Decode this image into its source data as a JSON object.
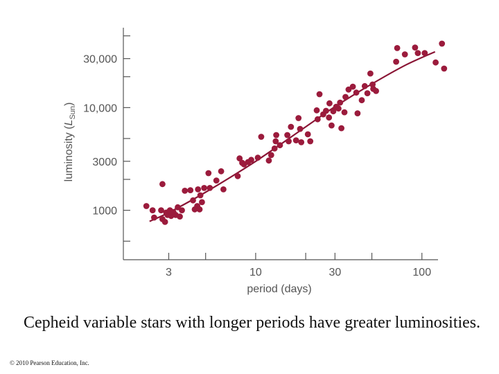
{
  "chart_data": {
    "type": "scatter",
    "xscale": "log",
    "yscale": "log",
    "xlabel": "period (days)",
    "ylabel_main": "luminosity (",
    "ylabel_italic": "L",
    "ylabel_sub": "Sun",
    "ylabel_close": ")",
    "xlim": [
      1.6,
      125
    ],
    "ylim": [
      330,
      60000
    ],
    "x_ticks": [
      {
        "value": 3,
        "label": "3"
      },
      {
        "value": 10,
        "label": "10"
      },
      {
        "value": 30,
        "label": "30"
      },
      {
        "value": 100,
        "label": "100"
      }
    ],
    "x_minor_ticks": [
      5,
      20,
      50
    ],
    "y_ticks": [
      {
        "value": 1000,
        "label": "1000"
      },
      {
        "value": 3000,
        "label": "3000"
      },
      {
        "value": 10000,
        "label": "10,000"
      },
      {
        "value": 30000,
        "label": "30,000"
      }
    ],
    "y_minor_ticks": [
      500,
      2000,
      5000,
      20000,
      50000
    ],
    "trend": {
      "x": [
        2.3,
        3,
        5,
        10,
        20,
        30,
        50,
        80,
        120
      ],
      "y": [
        780,
        950,
        1500,
        3000,
        6500,
        10200,
        17000,
        26000,
        35000
      ]
    },
    "points": [
      {
        "x": 2.2,
        "y": 1100
      },
      {
        "x": 2.4,
        "y": 1000
      },
      {
        "x": 2.45,
        "y": 850
      },
      {
        "x": 2.7,
        "y": 1000
      },
      {
        "x": 2.75,
        "y": 1800
      },
      {
        "x": 2.75,
        "y": 820
      },
      {
        "x": 2.85,
        "y": 770
      },
      {
        "x": 2.9,
        "y": 950
      },
      {
        "x": 2.95,
        "y": 900
      },
      {
        "x": 3.05,
        "y": 1000
      },
      {
        "x": 3.1,
        "y": 880
      },
      {
        "x": 3.2,
        "y": 960
      },
      {
        "x": 3.3,
        "y": 900
      },
      {
        "x": 3.4,
        "y": 1070
      },
      {
        "x": 3.5,
        "y": 870
      },
      {
        "x": 3.6,
        "y": 1000
      },
      {
        "x": 3.75,
        "y": 1550
      },
      {
        "x": 4.05,
        "y": 1570
      },
      {
        "x": 4.2,
        "y": 1250
      },
      {
        "x": 4.3,
        "y": 1020
      },
      {
        "x": 4.45,
        "y": 1100
      },
      {
        "x": 4.5,
        "y": 1600
      },
      {
        "x": 4.6,
        "y": 1020
      },
      {
        "x": 4.65,
        "y": 1400
      },
      {
        "x": 4.75,
        "y": 1200
      },
      {
        "x": 4.9,
        "y": 1650
      },
      {
        "x": 5.2,
        "y": 2300
      },
      {
        "x": 5.3,
        "y": 1650
      },
      {
        "x": 5.8,
        "y": 1950
      },
      {
        "x": 6.2,
        "y": 2400
      },
      {
        "x": 6.4,
        "y": 1600
      },
      {
        "x": 7.8,
        "y": 2150
      },
      {
        "x": 8.0,
        "y": 3200
      },
      {
        "x": 8.3,
        "y": 2900
      },
      {
        "x": 8.5,
        "y": 2800
      },
      {
        "x": 9.0,
        "y": 2950
      },
      {
        "x": 9.4,
        "y": 3100
      },
      {
        "x": 10.3,
        "y": 3250
      },
      {
        "x": 10.8,
        "y": 5200
      },
      {
        "x": 12.0,
        "y": 3050
      },
      {
        "x": 12.4,
        "y": 3450
      },
      {
        "x": 13.0,
        "y": 4000
      },
      {
        "x": 13.2,
        "y": 4700
      },
      {
        "x": 13.3,
        "y": 5400
      },
      {
        "x": 14.0,
        "y": 4300
      },
      {
        "x": 15.5,
        "y": 5400
      },
      {
        "x": 15.8,
        "y": 4700
      },
      {
        "x": 16.3,
        "y": 6500
      },
      {
        "x": 17.5,
        "y": 4800
      },
      {
        "x": 18.1,
        "y": 7900
      },
      {
        "x": 18.5,
        "y": 6200
      },
      {
        "x": 18.8,
        "y": 4600
      },
      {
        "x": 20.6,
        "y": 5500
      },
      {
        "x": 21.3,
        "y": 4700
      },
      {
        "x": 23.3,
        "y": 9400
      },
      {
        "x": 23.6,
        "y": 7700
      },
      {
        "x": 24.2,
        "y": 13500
      },
      {
        "x": 25.5,
        "y": 8600
      },
      {
        "x": 26.5,
        "y": 9300
      },
      {
        "x": 27.6,
        "y": 8000
      },
      {
        "x": 27.8,
        "y": 11000
      },
      {
        "x": 28.6,
        "y": 6700
      },
      {
        "x": 29.3,
        "y": 9200
      },
      {
        "x": 30.5,
        "y": 10200
      },
      {
        "x": 31.5,
        "y": 9800
      },
      {
        "x": 32.2,
        "y": 11200
      },
      {
        "x": 32.8,
        "y": 6300
      },
      {
        "x": 34.2,
        "y": 9000
      },
      {
        "x": 34.7,
        "y": 12700
      },
      {
        "x": 36.2,
        "y": 15000
      },
      {
        "x": 38.4,
        "y": 16000
      },
      {
        "x": 40.3,
        "y": 14000
      },
      {
        "x": 41.0,
        "y": 8800
      },
      {
        "x": 43.5,
        "y": 11800
      },
      {
        "x": 45.3,
        "y": 16200
      },
      {
        "x": 47.0,
        "y": 13800
      },
      {
        "x": 51.0,
        "y": 15200
      },
      {
        "x": 49.0,
        "y": 21500
      },
      {
        "x": 50.5,
        "y": 16800
      },
      {
        "x": 53.0,
        "y": 14500
      },
      {
        "x": 70.0,
        "y": 28000
      },
      {
        "x": 71.0,
        "y": 38000
      },
      {
        "x": 79.0,
        "y": 33000
      },
      {
        "x": 91.0,
        "y": 38500
      },
      {
        "x": 94.5,
        "y": 34000
      },
      {
        "x": 104.0,
        "y": 34000
      },
      {
        "x": 121.0,
        "y": 27500
      },
      {
        "x": 132.0,
        "y": 42000
      },
      {
        "x": 136.0,
        "y": 24000
      }
    ]
  },
  "caption": "Cepheid variable stars with longer periods have greater luminosities.",
  "copyright": "© 2010 Pearson Education, Inc.",
  "colors": {
    "points": "#9b1b3c",
    "trend": "#8a1535",
    "axes": "#555555"
  }
}
